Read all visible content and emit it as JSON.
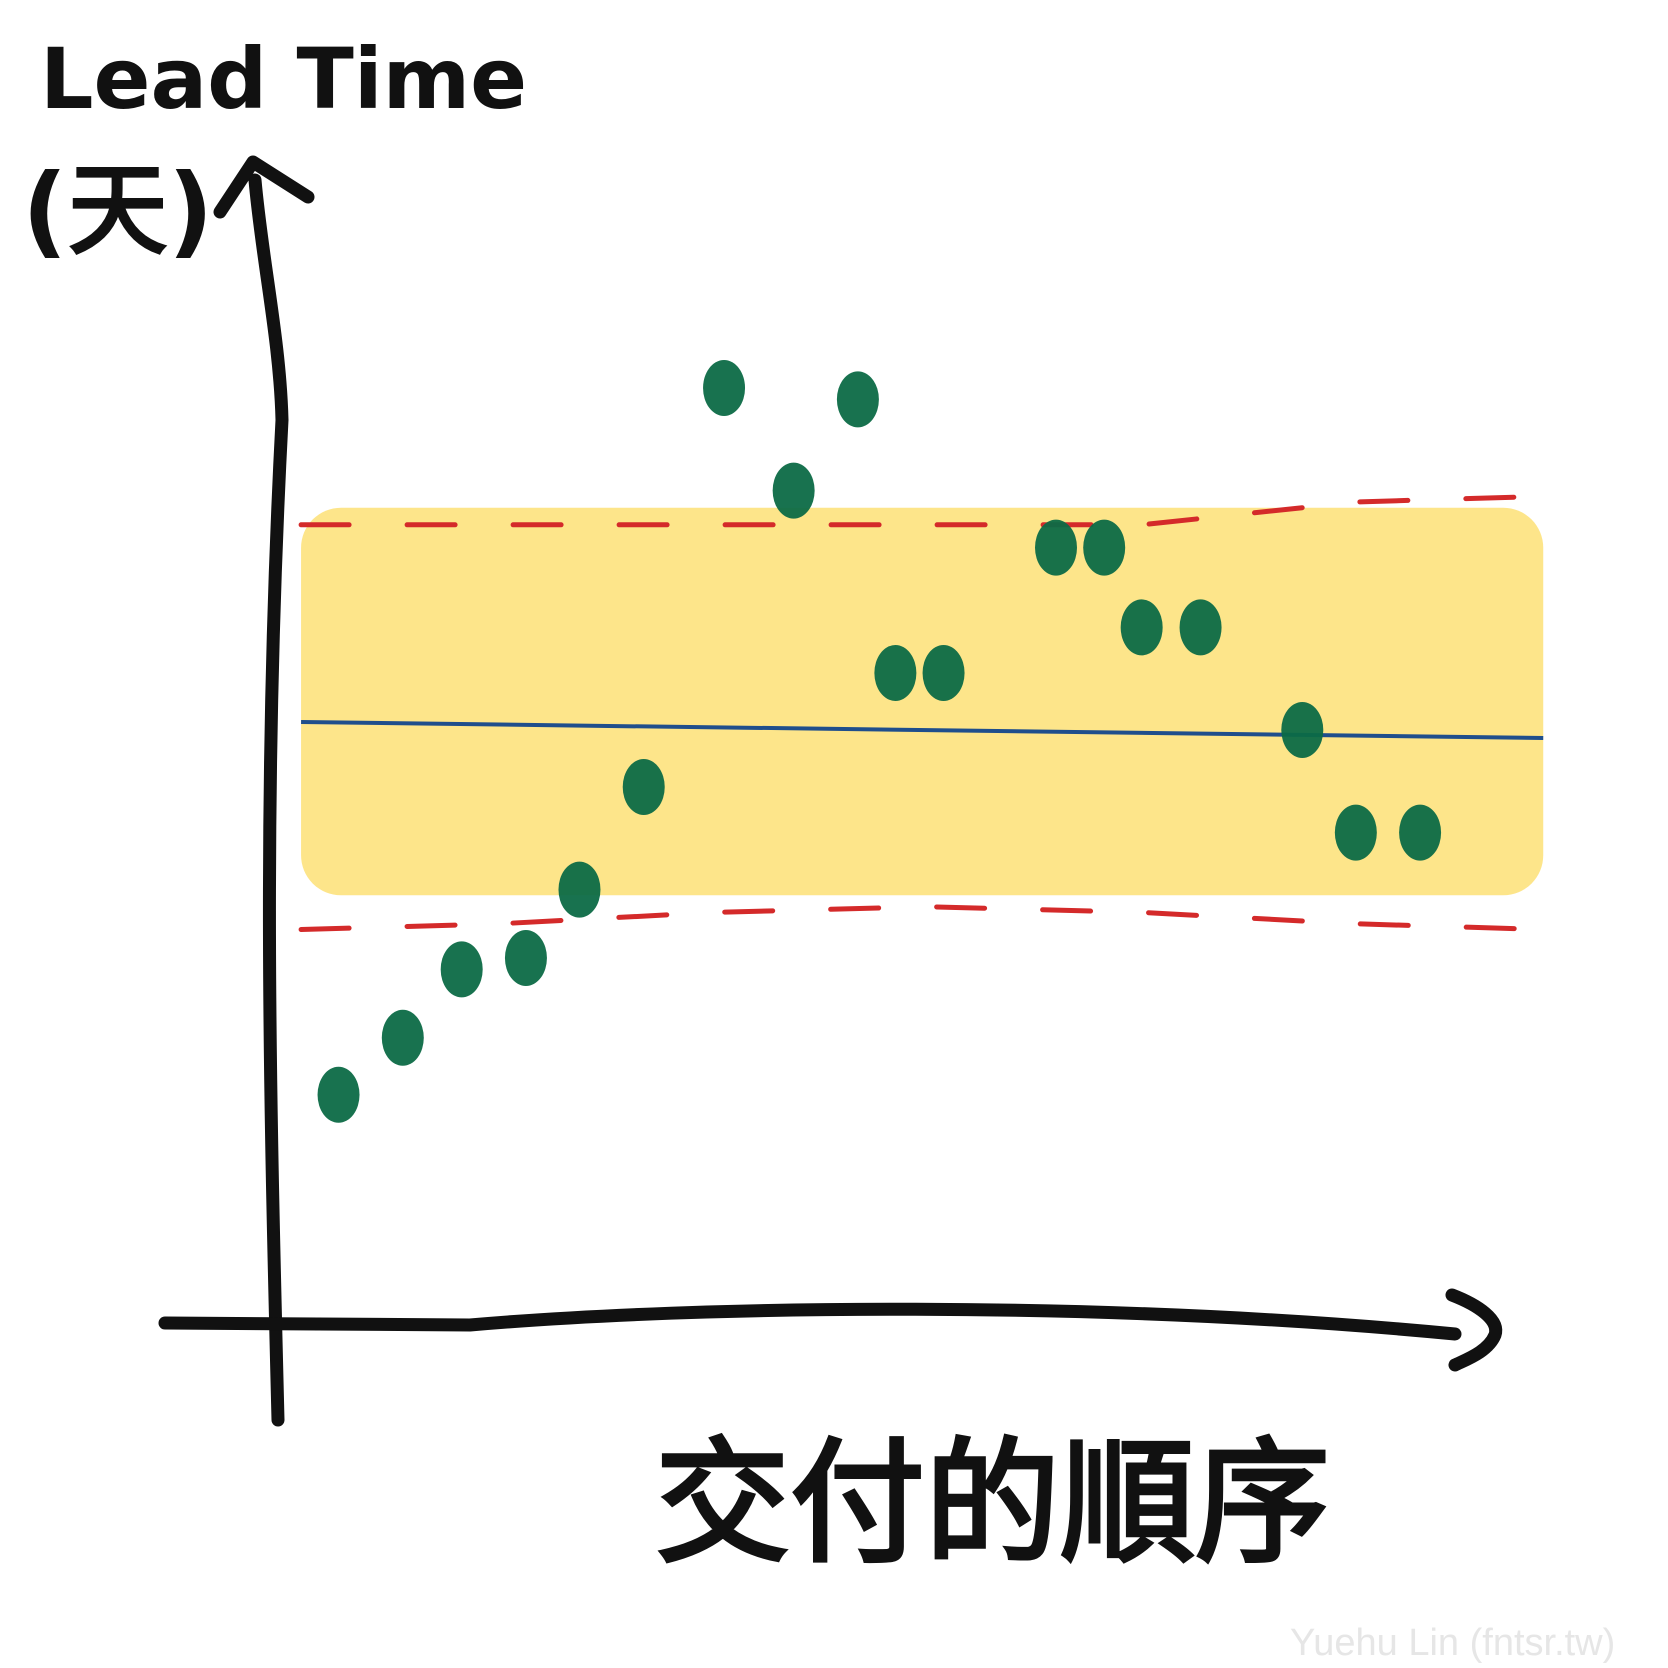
{
  "chart_data": {
    "type": "scatter",
    "title": "",
    "ylabel_line1": "Lead Time",
    "ylabel_line2": "(天)",
    "xlabel": "交付的順序",
    "xlim": [
      0,
      24
    ],
    "ylim": [
      0,
      10
    ],
    "grid": false,
    "points": [
      {
        "x": 1,
        "y": 1.8
      },
      {
        "x": 2.2,
        "y": 2.3
      },
      {
        "x": 3.3,
        "y": 2.9
      },
      {
        "x": 4.5,
        "y": 3.0
      },
      {
        "x": 5.5,
        "y": 3.6
      },
      {
        "x": 6.7,
        "y": 4.5
      },
      {
        "x": 8.2,
        "y": 8.0
      },
      {
        "x": 9.5,
        "y": 7.1
      },
      {
        "x": 10.7,
        "y": 7.9
      },
      {
        "x": 11.4,
        "y": 5.5
      },
      {
        "x": 12.3,
        "y": 5.5
      },
      {
        "x": 14.4,
        "y": 6.6
      },
      {
        "x": 15.3,
        "y": 6.6
      },
      {
        "x": 16.0,
        "y": 5.9
      },
      {
        "x": 17.1,
        "y": 5.9
      },
      {
        "x": 19.0,
        "y": 5.0
      },
      {
        "x": 20.0,
        "y": 4.1
      },
      {
        "x": 21.2,
        "y": 4.1
      }
    ],
    "mean_line": {
      "style": "solid",
      "color": "#1f4e8c",
      "y": 5.0
    },
    "upper_limit": {
      "style": "dashed",
      "color": "#d42a2a",
      "y": [
        6.8,
        6.8,
        6.8,
        6.8,
        6.8,
        7.0,
        7.05
      ]
    },
    "lower_limit": {
      "style": "dashed",
      "color": "#d42a2a",
      "y": [
        3.25,
        3.3,
        3.4,
        3.45,
        3.4,
        3.3,
        3.25
      ]
    },
    "limit_x": [
      0.3,
      4,
      8,
      12,
      16,
      20,
      23.5
    ],
    "band": {
      "color": "#fde58a",
      "from_y": 3.55,
      "to_y": 6.95
    },
    "point_color": "#0c6a46"
  },
  "watermark": "Yuehu Lin (fntsr.tw)"
}
